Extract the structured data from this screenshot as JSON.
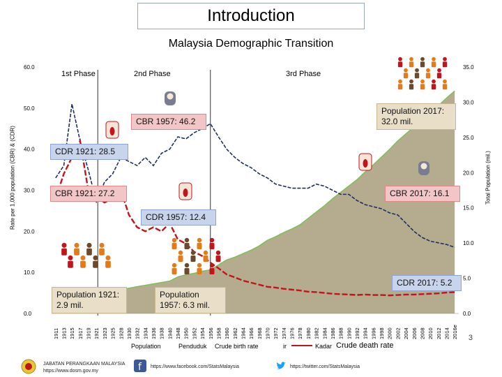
{
  "slide": {
    "title": "Introduction",
    "subtitle": "Malaysia Demographic Transition",
    "page_number": "3"
  },
  "phases": [
    "1st Phase",
    "2nd Phase",
    "3rd Phase"
  ],
  "callouts": {
    "cbr_1957": "CBR 1957: 46.2",
    "cdr_1921": "CDR 1921: 28.5",
    "cbr_1921": "CBR 1921: 27.2",
    "cdr_1957": "CDR 1957: 12.4",
    "cbr_2017": "CBR 2017: 16.1",
    "cdr_2017": "CDR 2017: 5.2",
    "pop_2017": "Population 2017: 32.0 mil.",
    "pop_1921": "Population 1921: 2.9 mil.",
    "pop_1957": "Population 1957: 6.3 mil."
  },
  "legend": {
    "population": "Population",
    "population_ms": "Penduduk",
    "cbr": "Crude birth rate",
    "cbr_ms": "Kadar",
    "cdr": "Crude death rate"
  },
  "footer": {
    "org": "JABATAN PERANGKAAN MALAYSIA",
    "url": "https://www.dosm.gov.my",
    "facebook": "https://www.facebook.com/StatsMalaysia",
    "twitter": "https://twitter.com/StatsMalaysia"
  },
  "colors": {
    "population_fill": "#b5ab8f",
    "population_edge": "#7fbf5a",
    "cbr_line": "#1f2f5f",
    "cdr_line": "#c0151b"
  },
  "chart_data": {
    "type": "line",
    "title": "Malaysia Demographic Transition",
    "ylabel": "Rate per 1,000 population (CBR) & (CDR)",
    "y2label": "Total Population (mil.)",
    "ylim": [
      0,
      60
    ],
    "y2lim": [
      0,
      35
    ],
    "yticks": [
      "0.0",
      "10.0",
      "20.0",
      "30.0",
      "40.0",
      "50.0",
      "60.0"
    ],
    "y2ticks": [
      "0.0",
      "5.0",
      "10.0",
      "15.0",
      "20.0",
      "25.0",
      "30.0",
      "35.0"
    ],
    "xticks": [
      "1911",
      "1913",
      "1915",
      "1917",
      "1919",
      "1921",
      "1923",
      "1925",
      "1928",
      "1930",
      "1932",
      "1934",
      "1936",
      "1938",
      "1940",
      "1948",
      "1950",
      "1952",
      "1954",
      "1956",
      "1958",
      "1960",
      "1962",
      "1964",
      "1966",
      "1968",
      "1970",
      "1972",
      "1974",
      "1976",
      "1978",
      "1980",
      "1982",
      "1984",
      "1986",
      "1988",
      "1990",
      "1992",
      "1994",
      "1996",
      "1998",
      "2000",
      "2002",
      "2004",
      "2006",
      "2008",
      "2010",
      "2012",
      "2014",
      "2016e"
    ],
    "series": [
      {
        "name": "Population",
        "axis": "right",
        "values": [
          2.3,
          2.4,
          2.5,
          2.6,
          2.8,
          2.9,
          3.0,
          3.2,
          3.4,
          3.6,
          3.8,
          4.0,
          4.2,
          4.4,
          4.6,
          5.2,
          5.5,
          5.7,
          6.0,
          6.2,
          6.9,
          7.6,
          8.0,
          8.5,
          9.0,
          9.6,
          10.4,
          10.9,
          11.5,
          12.0,
          12.6,
          13.5,
          14.4,
          15.3,
          16.3,
          17.2,
          18.1,
          19.0,
          20.1,
          21.1,
          22.2,
          23.3,
          24.5,
          25.5,
          26.5,
          27.5,
          28.6,
          29.5,
          30.6,
          31.6
        ]
      },
      {
        "name": "Crude birth rate",
        "axis": "left",
        "values": [
          33,
          36,
          51,
          42,
          35,
          27.2,
          32,
          34,
          38,
          37,
          36,
          38,
          36,
          39,
          40,
          43,
          42.5,
          44,
          45,
          46.2,
          43,
          40,
          38,
          36.5,
          35.5,
          34,
          33,
          31.5,
          31,
          30.5,
          30.5,
          30.5,
          31.5,
          31,
          30,
          29,
          29,
          27.5,
          26.5,
          26,
          25.5,
          24.5,
          24,
          22,
          20,
          18.5,
          17.6,
          17.2,
          16.8,
          16.1
        ]
      },
      {
        "name": "Crude death rate",
        "axis": "left",
        "values": [
          28,
          34,
          38,
          42,
          30,
          28.5,
          27,
          28,
          30,
          24,
          21,
          20,
          21,
          20,
          22,
          18,
          17,
          15,
          14,
          12.4,
          11,
          9.5,
          8.8,
          8,
          7.5,
          7,
          6.5,
          6.3,
          6,
          5.8,
          5.6,
          5.3,
          5.2,
          5,
          4.8,
          4.7,
          4.6,
          4.5,
          4.6,
          4.5,
          4.5,
          4.4,
          4.5,
          4.6,
          4.6,
          4.7,
          4.8,
          4.9,
          5.1,
          5.2
        ]
      }
    ]
  }
}
